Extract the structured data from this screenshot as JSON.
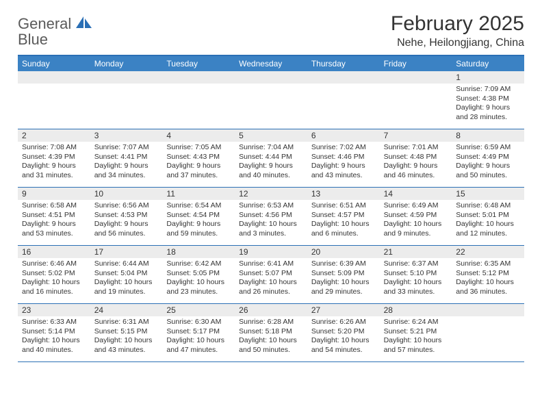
{
  "colors": {
    "brand_blue": "#2a6fb5",
    "header_blue": "#3b82c4",
    "daynum_bg": "#ececec",
    "text": "#333333",
    "logo_gray": "#5a5a5a",
    "background": "#ffffff"
  },
  "logo": {
    "word1": "General",
    "word2": "Blue"
  },
  "title": "February 2025",
  "location": "Nehe, Heilongjiang, China",
  "day_labels": [
    "Sunday",
    "Monday",
    "Tuesday",
    "Wednesday",
    "Thursday",
    "Friday",
    "Saturday"
  ],
  "calendar": {
    "type": "calendar-grid",
    "columns": 7,
    "rows": 5,
    "fontsize_label": 12,
    "fontsize_body": 10.5
  },
  "weeks": [
    [
      {
        "day": "",
        "sunrise": "",
        "sunset": "",
        "daylight": ""
      },
      {
        "day": "",
        "sunrise": "",
        "sunset": "",
        "daylight": ""
      },
      {
        "day": "",
        "sunrise": "",
        "sunset": "",
        "daylight": ""
      },
      {
        "day": "",
        "sunrise": "",
        "sunset": "",
        "daylight": ""
      },
      {
        "day": "",
        "sunrise": "",
        "sunset": "",
        "daylight": ""
      },
      {
        "day": "",
        "sunrise": "",
        "sunset": "",
        "daylight": ""
      },
      {
        "day": "1",
        "sunrise": "Sunrise: 7:09 AM",
        "sunset": "Sunset: 4:38 PM",
        "daylight": "Daylight: 9 hours and 28 minutes."
      }
    ],
    [
      {
        "day": "2",
        "sunrise": "Sunrise: 7:08 AM",
        "sunset": "Sunset: 4:39 PM",
        "daylight": "Daylight: 9 hours and 31 minutes."
      },
      {
        "day": "3",
        "sunrise": "Sunrise: 7:07 AM",
        "sunset": "Sunset: 4:41 PM",
        "daylight": "Daylight: 9 hours and 34 minutes."
      },
      {
        "day": "4",
        "sunrise": "Sunrise: 7:05 AM",
        "sunset": "Sunset: 4:43 PM",
        "daylight": "Daylight: 9 hours and 37 minutes."
      },
      {
        "day": "5",
        "sunrise": "Sunrise: 7:04 AM",
        "sunset": "Sunset: 4:44 PM",
        "daylight": "Daylight: 9 hours and 40 minutes."
      },
      {
        "day": "6",
        "sunrise": "Sunrise: 7:02 AM",
        "sunset": "Sunset: 4:46 PM",
        "daylight": "Daylight: 9 hours and 43 minutes."
      },
      {
        "day": "7",
        "sunrise": "Sunrise: 7:01 AM",
        "sunset": "Sunset: 4:48 PM",
        "daylight": "Daylight: 9 hours and 46 minutes."
      },
      {
        "day": "8",
        "sunrise": "Sunrise: 6:59 AM",
        "sunset": "Sunset: 4:49 PM",
        "daylight": "Daylight: 9 hours and 50 minutes."
      }
    ],
    [
      {
        "day": "9",
        "sunrise": "Sunrise: 6:58 AM",
        "sunset": "Sunset: 4:51 PM",
        "daylight": "Daylight: 9 hours and 53 minutes."
      },
      {
        "day": "10",
        "sunrise": "Sunrise: 6:56 AM",
        "sunset": "Sunset: 4:53 PM",
        "daylight": "Daylight: 9 hours and 56 minutes."
      },
      {
        "day": "11",
        "sunrise": "Sunrise: 6:54 AM",
        "sunset": "Sunset: 4:54 PM",
        "daylight": "Daylight: 9 hours and 59 minutes."
      },
      {
        "day": "12",
        "sunrise": "Sunrise: 6:53 AM",
        "sunset": "Sunset: 4:56 PM",
        "daylight": "Daylight: 10 hours and 3 minutes."
      },
      {
        "day": "13",
        "sunrise": "Sunrise: 6:51 AM",
        "sunset": "Sunset: 4:57 PM",
        "daylight": "Daylight: 10 hours and 6 minutes."
      },
      {
        "day": "14",
        "sunrise": "Sunrise: 6:49 AM",
        "sunset": "Sunset: 4:59 PM",
        "daylight": "Daylight: 10 hours and 9 minutes."
      },
      {
        "day": "15",
        "sunrise": "Sunrise: 6:48 AM",
        "sunset": "Sunset: 5:01 PM",
        "daylight": "Daylight: 10 hours and 12 minutes."
      }
    ],
    [
      {
        "day": "16",
        "sunrise": "Sunrise: 6:46 AM",
        "sunset": "Sunset: 5:02 PM",
        "daylight": "Daylight: 10 hours and 16 minutes."
      },
      {
        "day": "17",
        "sunrise": "Sunrise: 6:44 AM",
        "sunset": "Sunset: 5:04 PM",
        "daylight": "Daylight: 10 hours and 19 minutes."
      },
      {
        "day": "18",
        "sunrise": "Sunrise: 6:42 AM",
        "sunset": "Sunset: 5:05 PM",
        "daylight": "Daylight: 10 hours and 23 minutes."
      },
      {
        "day": "19",
        "sunrise": "Sunrise: 6:41 AM",
        "sunset": "Sunset: 5:07 PM",
        "daylight": "Daylight: 10 hours and 26 minutes."
      },
      {
        "day": "20",
        "sunrise": "Sunrise: 6:39 AM",
        "sunset": "Sunset: 5:09 PM",
        "daylight": "Daylight: 10 hours and 29 minutes."
      },
      {
        "day": "21",
        "sunrise": "Sunrise: 6:37 AM",
        "sunset": "Sunset: 5:10 PM",
        "daylight": "Daylight: 10 hours and 33 minutes."
      },
      {
        "day": "22",
        "sunrise": "Sunrise: 6:35 AM",
        "sunset": "Sunset: 5:12 PM",
        "daylight": "Daylight: 10 hours and 36 minutes."
      }
    ],
    [
      {
        "day": "23",
        "sunrise": "Sunrise: 6:33 AM",
        "sunset": "Sunset: 5:14 PM",
        "daylight": "Daylight: 10 hours and 40 minutes."
      },
      {
        "day": "24",
        "sunrise": "Sunrise: 6:31 AM",
        "sunset": "Sunset: 5:15 PM",
        "daylight": "Daylight: 10 hours and 43 minutes."
      },
      {
        "day": "25",
        "sunrise": "Sunrise: 6:30 AM",
        "sunset": "Sunset: 5:17 PM",
        "daylight": "Daylight: 10 hours and 47 minutes."
      },
      {
        "day": "26",
        "sunrise": "Sunrise: 6:28 AM",
        "sunset": "Sunset: 5:18 PM",
        "daylight": "Daylight: 10 hours and 50 minutes."
      },
      {
        "day": "27",
        "sunrise": "Sunrise: 6:26 AM",
        "sunset": "Sunset: 5:20 PM",
        "daylight": "Daylight: 10 hours and 54 minutes."
      },
      {
        "day": "28",
        "sunrise": "Sunrise: 6:24 AM",
        "sunset": "Sunset: 5:21 PM",
        "daylight": "Daylight: 10 hours and 57 minutes."
      },
      {
        "day": "",
        "sunrise": "",
        "sunset": "",
        "daylight": ""
      }
    ]
  ]
}
